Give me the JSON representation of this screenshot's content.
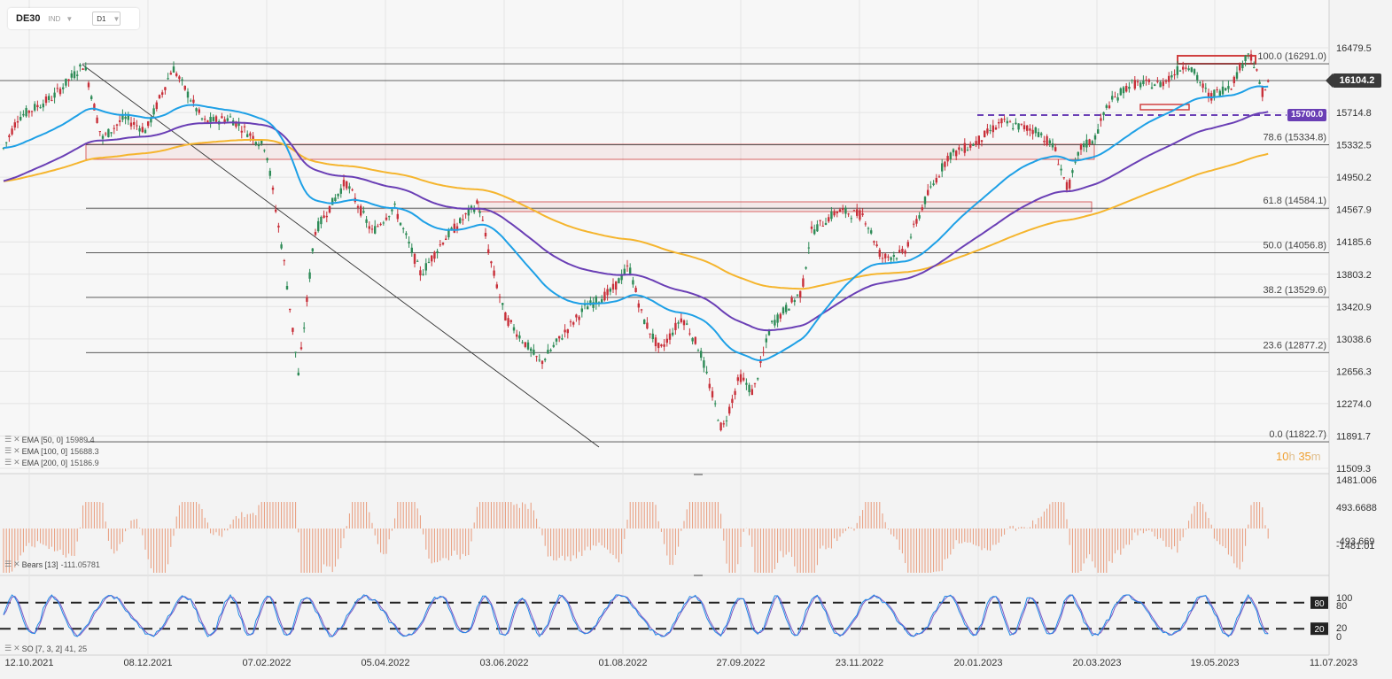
{
  "header": {
    "symbol": "DE30",
    "class": "IND",
    "timeframe": "D1"
  },
  "colors": {
    "up": "#2e8b57",
    "down": "#c8303a",
    "ema50": "#1ea0e6",
    "ema100": "#6a3fb5",
    "ema200": "#f5b52e",
    "bears_bar": "#e89a7a",
    "so_k": "#1e88e5",
    "so_d": "#7e57c2",
    "fib_line": "#444444",
    "zone": "#d04040",
    "support_line": "#6a3fb5",
    "price_badge": "#3a3a3a",
    "support_badge": "#6a3fb5",
    "timer": "#f0a030"
  },
  "price_axis": [
    "16479.5",
    "15714.8",
    "15332.5",
    "14950.2",
    "14567.9",
    "14185.6",
    "13803.2",
    "13420.9",
    "13038.6",
    "12656.3",
    "12274.0",
    "11891.7",
    "11509.3"
  ],
  "time_axis": [
    "12.10.2021",
    "08.12.2021",
    "07.02.2022",
    "05.04.2022",
    "03.06.2022",
    "01.08.2022",
    "27.09.2022",
    "23.11.2022",
    "20.01.2023",
    "20.03.2023",
    "19.05.2023",
    "11.07.2023"
  ],
  "current_price": "16104.2",
  "support_level": "15700.0",
  "fib_levels": [
    {
      "label": "100.0 (16291.0)",
      "value": 16291.0
    },
    {
      "label": "78.6 (15334.8)",
      "value": 15334.8
    },
    {
      "label": "61.8 (14584.1)",
      "value": 14584.1
    },
    {
      "label": "50.0 (14056.8)",
      "value": 14056.8
    },
    {
      "label": "38.2 (13529.6)",
      "value": 13529.6
    },
    {
      "label": "23.6 (12877.2)",
      "value": 12877.2
    },
    {
      "label": "0.0 (11822.7)",
      "value": 11822.7
    }
  ],
  "legend": {
    "ema50": {
      "label": "EMA [50, 0]",
      "value": "15989.4"
    },
    "ema100": {
      "label": "EMA [100, 0]",
      "value": "15688.3"
    },
    "ema200": {
      "label": "EMA [200, 0]",
      "value": "15186.9"
    }
  },
  "bears": {
    "label": "Bears [13]",
    "value": "-111.05781",
    "axis": [
      "1481.006",
      "493.6688",
      "-493.669",
      "-1481.01"
    ]
  },
  "so": {
    "label": "SO [7, 3, 2]",
    "value": "41, 25",
    "axis": [
      "100",
      "80",
      "20",
      "0"
    ],
    "upper": "80",
    "lower": "20"
  },
  "timer": {
    "hours": "10",
    "h": "h",
    "minutes": "35",
    "m": "m"
  }
}
